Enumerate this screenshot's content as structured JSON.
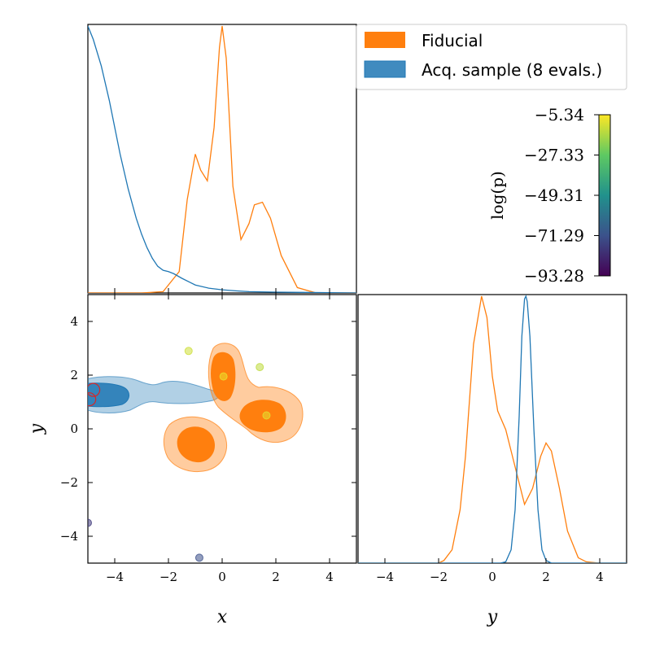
{
  "chart_data": {
    "type": "corner",
    "x_label": "x",
    "y_label": "y",
    "x_range": [
      -5,
      5
    ],
    "y_range": [
      -5,
      5
    ],
    "ticks": [
      -4,
      -2,
      0,
      2,
      4
    ],
    "tick_labels": [
      "−4",
      "−2",
      "0",
      "2",
      "4"
    ],
    "legend": [
      {
        "label": "Fiducial",
        "color": "#ff7f0e"
      },
      {
        "label": "Acq. sample (8 evals.)",
        "color": "#1f77b4"
      }
    ],
    "colorbar": {
      "label": "log(p)",
      "min": -93.28,
      "max": -5.34,
      "tick_values": [
        -5.34,
        -27.33,
        -49.31,
        -71.29,
        -93.28
      ],
      "tick_labels": [
        "−5.34",
        "−27.33",
        "−49.31",
        "−71.29",
        "−93.28"
      ],
      "colormap": "viridis"
    },
    "marginal_x": {
      "fiducial": {
        "x": [
          -5,
          -3,
          -2.2,
          -1.6,
          -1.3,
          -1.0,
          -0.8,
          -0.55,
          -0.3,
          -0.1,
          0.0,
          0.15,
          0.4,
          0.7,
          1.0,
          1.2,
          1.5,
          1.8,
          2.2,
          2.8,
          3.5,
          5
        ],
        "y": [
          0,
          0,
          0.005,
          0.08,
          0.35,
          0.52,
          0.46,
          0.42,
          0.62,
          0.92,
          1.0,
          0.88,
          0.4,
          0.2,
          0.26,
          0.33,
          0.34,
          0.28,
          0.14,
          0.02,
          0,
          0
        ]
      },
      "acq": {
        "x": [
          -5,
          -4.8,
          -4.5,
          -4.2,
          -4,
          -3.8,
          -3.5,
          -3.2,
          -3,
          -2.8,
          -2.6,
          -2.4,
          -2.2,
          -2,
          -1.8,
          -1.5,
          -1.2,
          -1,
          -0.5,
          0,
          0.5,
          1,
          2,
          3,
          4,
          5
        ],
        "y": [
          1.0,
          0.95,
          0.85,
          0.72,
          0.62,
          0.52,
          0.39,
          0.28,
          0.22,
          0.17,
          0.13,
          0.1,
          0.085,
          0.08,
          0.072,
          0.055,
          0.04,
          0.03,
          0.018,
          0.012,
          0.008,
          0.005,
          0.003,
          0.002,
          0.001,
          0
        ]
      }
    },
    "marginal_y": {
      "fiducial": {
        "x": [
          -5,
          -2,
          -1.8,
          -1.5,
          -1.2,
          -1,
          -0.7,
          -0.4,
          -0.2,
          0,
          0.2,
          0.5,
          0.8,
          1,
          1.2,
          1.5,
          1.8,
          2,
          2.2,
          2.5,
          2.8,
          3.2,
          3.5,
          4,
          5
        ],
        "y": [
          0,
          0,
          0.01,
          0.05,
          0.2,
          0.4,
          0.82,
          1.0,
          0.92,
          0.7,
          0.57,
          0.5,
          0.38,
          0.3,
          0.22,
          0.28,
          0.4,
          0.45,
          0.42,
          0.28,
          0.12,
          0.02,
          0.005,
          0,
          0
        ]
      },
      "acq": {
        "x": [
          -5,
          0.3,
          0.5,
          0.7,
          0.85,
          1.0,
          1.1,
          1.2,
          1.25,
          1.3,
          1.4,
          1.55,
          1.7,
          1.85,
          2.0,
          2.2,
          5
        ],
        "y": [
          0,
          0,
          0.005,
          0.05,
          0.2,
          0.55,
          0.85,
          0.99,
          1.0,
          0.98,
          0.85,
          0.5,
          0.2,
          0.05,
          0.01,
          0,
          0
        ]
      }
    },
    "samples": [
      {
        "x": -1.25,
        "y": 2.9,
        "logp": -12
      },
      {
        "x": 1.4,
        "y": 2.3,
        "logp": -14
      },
      {
        "x": 0.05,
        "y": 1.95,
        "logp": -8
      },
      {
        "x": 1.65,
        "y": 0.5,
        "logp": -9
      },
      {
        "x": -5.0,
        "y": -3.5,
        "logp": -78
      },
      {
        "x": -0.85,
        "y": -4.8,
        "logp": -72
      }
    ],
    "acq_points": [
      {
        "x": -4.8,
        "y": 1.45
      },
      {
        "x": -4.95,
        "y": 1.1
      }
    ]
  }
}
